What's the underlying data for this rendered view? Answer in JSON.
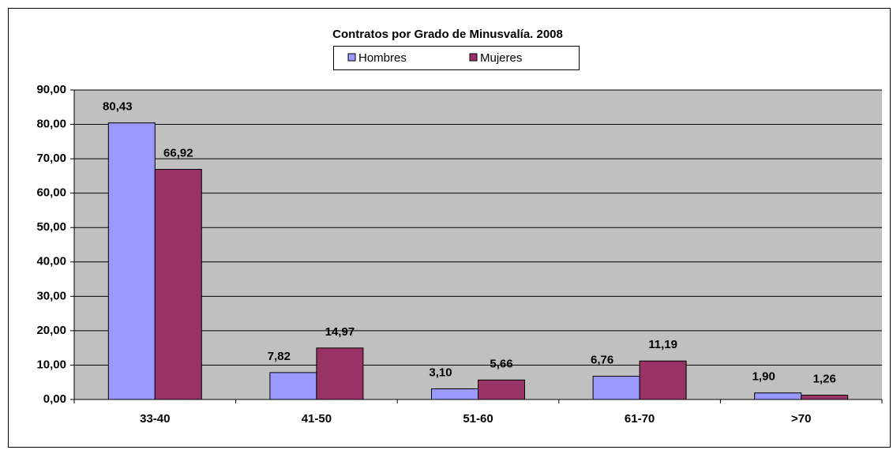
{
  "chart_data": {
    "type": "bar",
    "title": "Contratos por Grado de Minusvalía. 2008",
    "categories": [
      "33-40",
      "41-50",
      "51-60",
      "61-70",
      ">70"
    ],
    "series": [
      {
        "name": "Hombres",
        "color": "#9999ff",
        "values": [
          80.43,
          7.82,
          3.1,
          6.76,
          1.9
        ],
        "value_labels": [
          "80,43",
          "7,82",
          "3,10",
          "6,76",
          "1,90"
        ]
      },
      {
        "name": "Mujeres",
        "color": "#993366",
        "values": [
          66.92,
          14.97,
          5.66,
          11.19,
          1.26
        ],
        "value_labels": [
          "66,92",
          "14,97",
          "5,66",
          "11,19",
          "1,26"
        ]
      }
    ],
    "ylim": [
      0,
      90
    ],
    "yticks": [
      {
        "value": 0,
        "label": "0,00"
      },
      {
        "value": 10,
        "label": "10,00"
      },
      {
        "value": 20,
        "label": "20,00"
      },
      {
        "value": 30,
        "label": "30,00"
      },
      {
        "value": 40,
        "label": "40,00"
      },
      {
        "value": 50,
        "label": "50,00"
      },
      {
        "value": 60,
        "label": "60,00"
      },
      {
        "value": 70,
        "label": "70,00"
      },
      {
        "value": 80,
        "label": "80,00"
      },
      {
        "value": 90,
        "label": "90,00"
      }
    ],
    "grid": true,
    "legend": "top"
  }
}
